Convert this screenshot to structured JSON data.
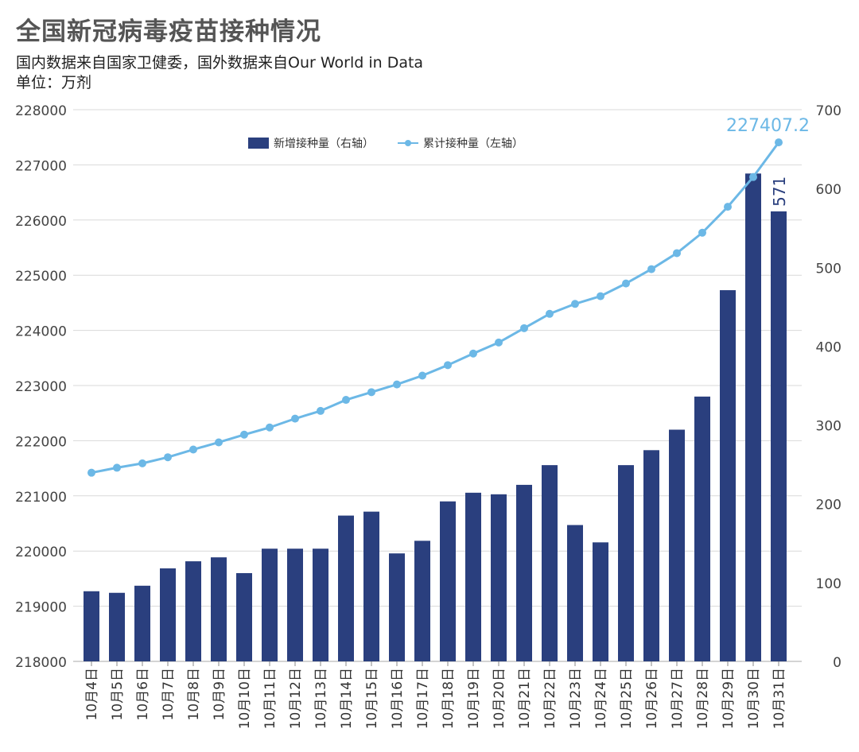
{
  "chart_data": {
    "type": "bar",
    "title": "全国新冠病毒疫苗接种情况",
    "subtitle": "国内数据来自国家卫健委，国外数据来自Our World in Data",
    "unit": "单位：万剂",
    "categories": [
      "10月4日",
      "10月5日",
      "10月6日",
      "10月7日",
      "10月8日",
      "10月9日",
      "10月10日",
      "10月11日",
      "10月12日",
      "10月13日",
      "10月14日",
      "10月15日",
      "10月16日",
      "10月17日",
      "10月18日",
      "10月19日",
      "10月20日",
      "10月21日",
      "10月22日",
      "10月23日",
      "10月24日",
      "10月25日",
      "10月26日",
      "10月27日",
      "10月28日",
      "10月29日",
      "10月30日",
      "10月31日"
    ],
    "series": [
      {
        "name": "新增接种量（右轴）",
        "type": "bar",
        "axis": "right",
        "color": "#2a3f7e",
        "values": [
          89,
          87,
          96,
          118,
          127,
          132,
          112,
          143,
          143,
          143,
          185,
          190,
          137,
          153,
          203,
          214,
          212,
          224,
          249,
          173,
          151,
          249,
          268,
          294,
          336,
          471,
          619,
          571
        ]
      },
      {
        "name": "累计接种量（左轴）",
        "type": "line",
        "axis": "left",
        "color": "#6cb8e6",
        "values": [
          221420,
          221510,
          221590,
          221700,
          221840,
          221970,
          222110,
          222240,
          222400,
          222540,
          222740,
          222880,
          223020,
          223180,
          223370,
          223580,
          223780,
          224040,
          224300,
          224480,
          224620,
          224850,
          225110,
          225400,
          225770,
          226240,
          226780,
          227407.2
        ]
      }
    ],
    "y_left": {
      "min": 218000,
      "max": 228000,
      "ticks": [
        "218000",
        "219000",
        "220000",
        "221000",
        "222000",
        "223000",
        "224000",
        "225000",
        "226000",
        "227000",
        "228000"
      ]
    },
    "y_right": {
      "min": 0,
      "max": 700,
      "ticks": [
        "0",
        "100",
        "200",
        "300",
        "400",
        "500",
        "600",
        "700"
      ]
    },
    "annotations": {
      "line_last_label": "227407.2",
      "bar_last_label": "571"
    },
    "legend": {
      "position": "top-center"
    },
    "grid": true
  }
}
